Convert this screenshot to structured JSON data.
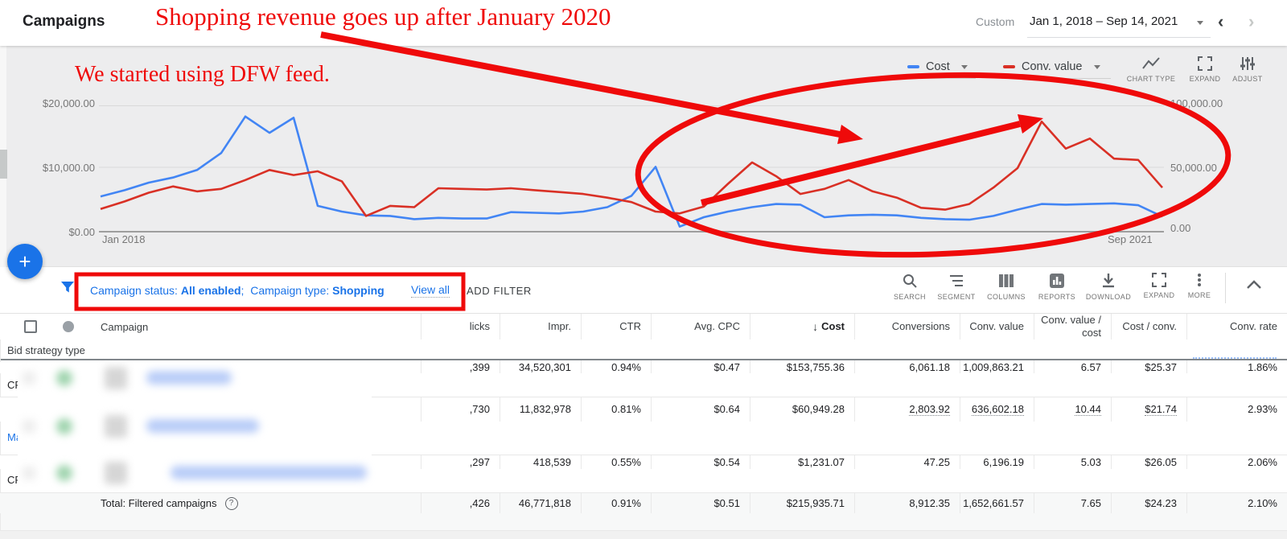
{
  "topbar": {
    "title": "Campaigns",
    "date_preset": "Custom",
    "date_range": "Jan 1, 2018 – Sep 14, 2021"
  },
  "annotations": {
    "note1": "Shopping revenue goes up after January 2020",
    "note2": "We started using DFW feed.",
    "color": "#ef0a0a"
  },
  "chart": {
    "legend": [
      {
        "label": "Cost",
        "color": "#4285f4"
      },
      {
        "label": "Conv. value",
        "color": "#d93025"
      }
    ],
    "tools": [
      {
        "label": "CHART TYPE"
      },
      {
        "label": "EXPAND"
      },
      {
        "label": "ADJUST"
      }
    ]
  },
  "chart_data": {
    "type": "line",
    "x_start": "Jan 2018",
    "x_end": "Sep 2021",
    "x_unit": "month",
    "grid": true,
    "legend_position": "top-right",
    "left_axis": {
      "ticks": [
        "$20,000.00",
        "$10,000.00",
        "$0.00"
      ],
      "max": 20000
    },
    "right_axis": {
      "ticks": [
        "100,000.00",
        "50,000.00",
        "0.00"
      ],
      "max": 100000
    },
    "series": [
      {
        "name": "Cost",
        "axis": "left",
        "color": "#4285f4",
        "values": [
          5600,
          6600,
          7800,
          8600,
          9800,
          12500,
          18300,
          15700,
          18100,
          4100,
          3200,
          2600,
          2500,
          2000,
          2200,
          2100,
          2100,
          3100,
          3000,
          2900,
          3200,
          3900,
          5700,
          10300,
          800,
          2300,
          3200,
          3900,
          4400,
          4300,
          2300,
          2600,
          2700,
          2600,
          2200,
          2000,
          1900,
          2500,
          3500,
          4400,
          4300,
          4400,
          4500,
          4200,
          2400
        ]
      },
      {
        "name": "Conv. value",
        "axis": "right",
        "color": "#d93025",
        "values": [
          18000,
          24000,
          31000,
          36000,
          32000,
          34000,
          41000,
          49000,
          45000,
          48000,
          40000,
          12500,
          20500,
          19500,
          34500,
          34000,
          33500,
          34500,
          33000,
          31500,
          30000,
          27000,
          23500,
          16000,
          14500,
          20000,
          38000,
          55000,
          44000,
          30000,
          34000,
          41000,
          32000,
          27000,
          19000,
          17500,
          22000,
          35000,
          50500,
          87500,
          66000,
          74000,
          58000,
          57000,
          35000
        ]
      }
    ]
  },
  "filter_bar": {
    "status_label": "Campaign status: ",
    "status_value": "All enabled",
    "separator": ";  ",
    "type_label": "Campaign type: ",
    "type_value": "Shopping",
    "view_all": "View all",
    "add_filter": "ADD FILTER",
    "tools": [
      {
        "label": "SEARCH"
      },
      {
        "label": "SEGMENT"
      },
      {
        "label": "COLUMNS"
      },
      {
        "label": "REPORTS"
      },
      {
        "label": "DOWNLOAD"
      },
      {
        "label": "EXPAND"
      },
      {
        "label": "MORE"
      }
    ]
  },
  "icons": {
    "sort_desc": "↓",
    "help": "?",
    "plus": "+",
    "caret_down": "▾",
    "prev": "‹",
    "next": "›"
  },
  "table": {
    "headers": [
      "Campaign",
      "licks",
      "Impr.",
      "CTR",
      "Avg. CPC",
      "Cost",
      "Conversions",
      "Conv. value",
      "Conv. value / cost",
      "Cost / conv.",
      "Conv. rate",
      "Bid strategy type"
    ],
    "rows": [
      {
        "cells": [
          ",399",
          "34,520,301",
          "0.94%",
          "$0.47",
          "$153,755.36",
          "6,061.18",
          "1,009,863.21",
          "6.57",
          "$25.37",
          "1.86%",
          "CPC (enhanced)"
        ]
      },
      {
        "cells": [
          ",730",
          "11,832,978",
          "0.81%",
          "$0.64",
          "$60,949.28",
          "2,803.92",
          "636,602.18",
          "10.44",
          "$21.74",
          "2.93%",
          "Maximize conversion value (Target ROAS)"
        ]
      },
      {
        "cells": [
          ",297",
          "418,539",
          "0.55%",
          "$0.54",
          "$1,231.07",
          "47.25",
          "6,196.19",
          "5.03",
          "$26.05",
          "2.06%",
          "CPC (enhanced)"
        ]
      }
    ],
    "total_row": {
      "label": "Total: Filtered campaigns",
      "cells": [
        ",426",
        "46,771,818",
        "0.91%",
        "$0.51",
        "$215,935.71",
        "8,912.35",
        "1,652,661.57",
        "7.65",
        "$24.23",
        "2.10%",
        ""
      ]
    }
  }
}
